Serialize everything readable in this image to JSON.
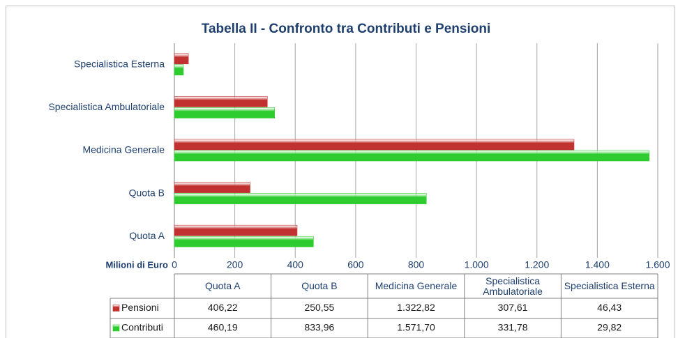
{
  "chart_data": {
    "type": "bar",
    "orientation": "horizontal",
    "title": "Tabella II - Confronto tra Contributi e Pensioni",
    "x_label": "Milioni di Euro",
    "categories": [
      "Quota A",
      "Quota B",
      "Medicina Generale",
      "Specialistica Ambulatoriale",
      "Specialistica Esterna"
    ],
    "series": [
      {
        "name": "Pensioni",
        "color": "#c0312f",
        "values": [
          406.22,
          250.55,
          1322.82,
          307.61,
          46.43
        ],
        "value_labels": [
          "406,22",
          "250,55",
          "1.322,82",
          "307,61",
          "46,43"
        ]
      },
      {
        "name": "Contributi",
        "color": "#2ecc2e",
        "values": [
          460.19,
          833.96,
          1571.7,
          331.78,
          29.82
        ],
        "value_labels": [
          "460,19",
          "833,96",
          "1.571,70",
          "331,78",
          "29,82"
        ]
      }
    ],
    "xlim": [
      0,
      1600
    ],
    "xticks": [
      0,
      200,
      400,
      600,
      800,
      {
        "value": 1000,
        "label": "1.000"
      },
      {
        "value": 1200,
        "label": "1.200"
      },
      {
        "value": 1400,
        "label": "1.400"
      },
      {
        "value": 1600,
        "label": "1.600"
      }
    ],
    "grid": true
  }
}
